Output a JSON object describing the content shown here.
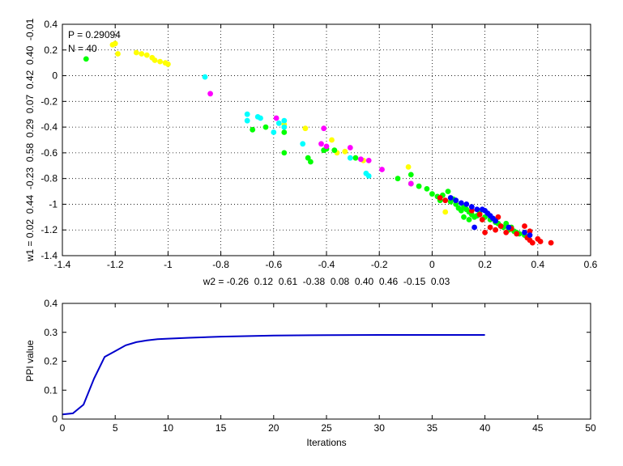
{
  "chart_data": [
    {
      "type": "scatter",
      "annotations": [
        "P = 0.29094",
        "N = 40"
      ],
      "xlabel": "w2 = -0.26  0.12  0.61  -0.38  0.08  0.40  0.46  -0.15  0.03",
      "ylabel": "w1 = 0.02  0.44  -0.23  0.58  0.29  0.07  0.42  0.40  -0.01",
      "xlim": [
        -1.4,
        0.6
      ],
      "ylim": [
        -1.4,
        0.4
      ],
      "xticks": [
        "-1.4",
        "-1.2",
        "-1",
        "-0.8",
        "-0.6",
        "-0.4",
        "-0.2",
        "0",
        "0.2",
        "0.4",
        "0.6"
      ],
      "yticks": [
        "-1.4",
        "-1.2",
        "-1",
        "-0.8",
        "-0.6",
        "-0.4",
        "-0.2",
        "0",
        "0.2",
        "0.4"
      ],
      "grid": true,
      "series": [
        {
          "color": "#ffff00",
          "points": [
            [
              -1.2,
              0.25
            ],
            [
              -1.21,
              0.24
            ],
            [
              -1.19,
              0.17
            ],
            [
              -1.12,
              0.18
            ],
            [
              -1.1,
              0.17
            ],
            [
              -1.08,
              0.16
            ],
            [
              -1.06,
              0.14
            ],
            [
              -1.05,
              0.12
            ],
            [
              -1.03,
              0.11
            ],
            [
              -1.01,
              0.1
            ],
            [
              -1.0,
              0.09
            ],
            [
              -0.56,
              -0.38
            ],
            [
              -0.48,
              -0.41
            ],
            [
              -0.38,
              -0.5
            ],
            [
              -0.36,
              -0.6
            ],
            [
              -0.33,
              -0.59
            ],
            [
              -0.26,
              -0.66
            ],
            [
              -0.09,
              -0.71
            ],
            [
              0.05,
              -1.06
            ]
          ]
        },
        {
          "color": "#00ff00",
          "points": [
            [
              -1.31,
              0.13
            ],
            [
              -0.68,
              -0.42
            ],
            [
              -0.63,
              -0.4
            ],
            [
              -0.56,
              -0.44
            ],
            [
              -0.56,
              -0.6
            ],
            [
              -0.47,
              -0.64
            ],
            [
              -0.46,
              -0.67
            ],
            [
              -0.4,
              -0.57
            ],
            [
              -0.41,
              -0.58
            ],
            [
              -0.37,
              -0.58
            ],
            [
              -0.29,
              -0.64
            ],
            [
              -0.13,
              -0.8
            ],
            [
              -0.08,
              -0.77
            ],
            [
              -0.08,
              -0.84
            ],
            [
              -0.05,
              -0.86
            ],
            [
              -0.02,
              -0.88
            ],
            [
              0.0,
              -0.92
            ],
            [
              0.02,
              -0.94
            ],
            [
              0.04,
              -0.93
            ],
            [
              0.06,
              -0.9
            ],
            [
              0.08,
              -0.96
            ],
            [
              0.09,
              -1.0
            ],
            [
              0.1,
              -1.03
            ],
            [
              0.11,
              -1.05
            ],
            [
              0.12,
              -1.02
            ],
            [
              0.13,
              -1.04
            ],
            [
              0.14,
              -1.06
            ],
            [
              0.15,
              -1.08
            ],
            [
              0.16,
              -1.1
            ],
            [
              0.17,
              -1.09
            ],
            [
              0.18,
              -1.07
            ],
            [
              0.19,
              -1.12
            ],
            [
              0.2,
              -1.1
            ],
            [
              0.22,
              -1.12
            ],
            [
              0.24,
              -1.14
            ],
            [
              0.25,
              -1.15
            ],
            [
              0.26,
              -1.17
            ],
            [
              0.27,
              -1.18
            ],
            [
              0.28,
              -1.15
            ],
            [
              0.29,
              -1.2
            ],
            [
              0.3,
              -1.18
            ],
            [
              0.31,
              -1.21
            ],
            [
              0.32,
              -1.22
            ],
            [
              0.33,
              -1.23
            ],
            [
              0.35,
              -1.24
            ],
            [
              0.12,
              -1.1
            ],
            [
              0.14,
              -1.12
            ],
            [
              0.03,
              -0.97
            ],
            [
              0.07,
              -0.98
            ]
          ]
        },
        {
          "color": "#00ffff",
          "points": [
            [
              -0.86,
              -0.01
            ],
            [
              -0.7,
              -0.3
            ],
            [
              -0.7,
              -0.35
            ],
            [
              -0.66,
              -0.32
            ],
            [
              -0.65,
              -0.33
            ],
            [
              -0.6,
              -0.44
            ],
            [
              -0.58,
              -0.37
            ],
            [
              -0.56,
              -0.35
            ],
            [
              -0.56,
              -0.4
            ],
            [
              -0.49,
              -0.53
            ],
            [
              -0.31,
              -0.64
            ],
            [
              -0.25,
              -0.76
            ],
            [
              -0.24,
              -0.78
            ]
          ]
        },
        {
          "color": "#ff00ff",
          "points": [
            [
              -0.84,
              -0.14
            ],
            [
              -0.59,
              -0.33
            ],
            [
              -0.41,
              -0.41
            ],
            [
              -0.42,
              -0.53
            ],
            [
              -0.4,
              -0.55
            ],
            [
              -0.31,
              -0.56
            ],
            [
              -0.27,
              -0.65
            ],
            [
              -0.24,
              -0.66
            ],
            [
              -0.19,
              -0.73
            ],
            [
              -0.08,
              -0.84
            ]
          ]
        },
        {
          "color": "#ff0000",
          "points": [
            [
              0.03,
              -0.95
            ],
            [
              0.05,
              -0.97
            ],
            [
              0.15,
              -1.05
            ],
            [
              0.19,
              -1.12
            ],
            [
              0.22,
              -1.18
            ],
            [
              0.24,
              -1.2
            ],
            [
              0.26,
              -1.17
            ],
            [
              0.28,
              -1.22
            ],
            [
              0.3,
              -1.19
            ],
            [
              0.32,
              -1.23
            ],
            [
              0.35,
              -1.17
            ],
            [
              0.36,
              -1.26
            ],
            [
              0.37,
              -1.28
            ],
            [
              0.38,
              -1.3
            ],
            [
              0.4,
              -1.27
            ],
            [
              0.41,
              -1.29
            ],
            [
              0.45,
              -1.3
            ],
            [
              0.37,
              -1.21
            ],
            [
              0.2,
              -1.22
            ],
            [
              0.25,
              -1.1
            ],
            [
              0.18,
              -1.08
            ]
          ]
        },
        {
          "color": "#0000ff",
          "points": [
            [
              0.07,
              -0.95
            ],
            [
              0.09,
              -0.97
            ],
            [
              0.11,
              -0.99
            ],
            [
              0.13,
              -1.0
            ],
            [
              0.15,
              -1.02
            ],
            [
              0.17,
              -1.04
            ],
            [
              0.19,
              -1.04
            ],
            [
              0.2,
              -1.05
            ],
            [
              0.21,
              -1.07
            ],
            [
              0.22,
              -1.09
            ],
            [
              0.23,
              -1.11
            ],
            [
              0.24,
              -1.13
            ],
            [
              0.16,
              -1.18
            ],
            [
              0.29,
              -1.18
            ],
            [
              0.37,
              -1.24
            ],
            [
              0.35,
              -1.22
            ]
          ]
        }
      ]
    },
    {
      "type": "line",
      "xlabel": "Iterations",
      "ylabel": "PPI value",
      "xlim": [
        0,
        50
      ],
      "ylim": [
        0,
        0.4
      ],
      "xticks": [
        "0",
        "5",
        "10",
        "15",
        "20",
        "25",
        "30",
        "35",
        "40",
        "45",
        "50"
      ],
      "yticks": [
        "0",
        "0.1",
        "0.2",
        "0.3",
        "0.4"
      ],
      "grid": false,
      "color": "#0000cc",
      "x": [
        0,
        1,
        2,
        3,
        4,
        5,
        6,
        7,
        8,
        9,
        10,
        12,
        15,
        20,
        25,
        30,
        35,
        40
      ],
      "y": [
        0.016,
        0.02,
        0.05,
        0.14,
        0.215,
        0.235,
        0.255,
        0.266,
        0.272,
        0.276,
        0.278,
        0.281,
        0.285,
        0.289,
        0.29,
        0.291,
        0.291,
        0.291
      ]
    }
  ]
}
